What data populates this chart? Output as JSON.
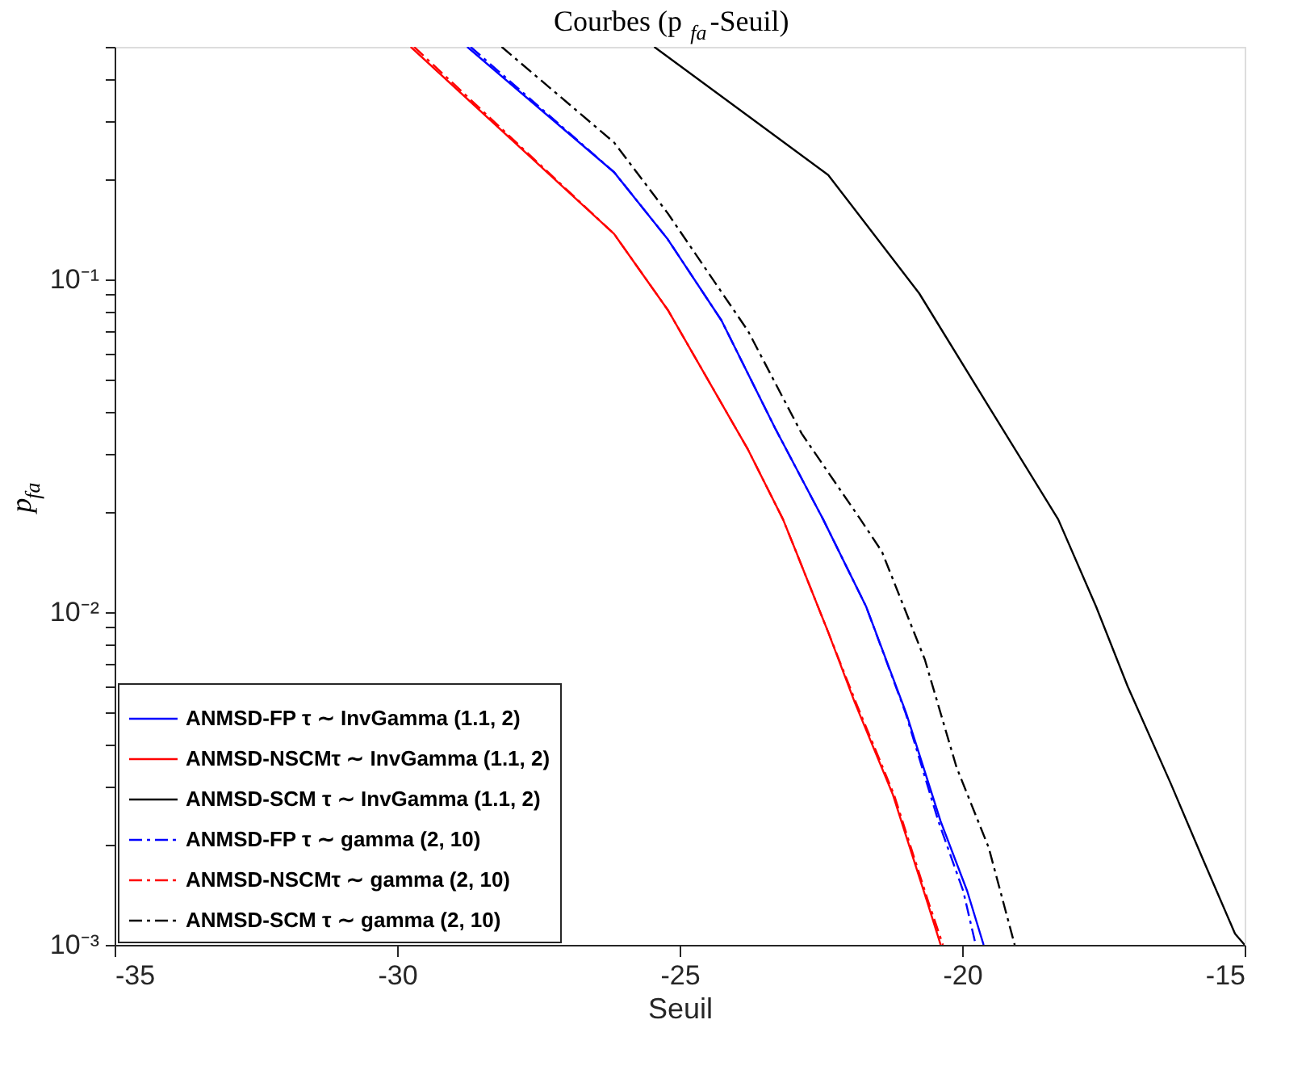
{
  "chart_data": {
    "type": "line",
    "title": "Courbes (p$_{fa}$-Seuil)",
    "xlabel": "Seuil",
    "ylabel": "p$_{fa}$",
    "xlim": [
      -35,
      -15
    ],
    "xticks": [
      -35,
      -30,
      -25,
      -20,
      -15
    ],
    "ylim": [
      0.001,
      0.5
    ],
    "yticks": [
      {
        "value": 0.001,
        "label": "10⁻³"
      },
      {
        "value": 0.002,
        "label": null
      },
      {
        "value": 0.003,
        "label": null
      },
      {
        "value": 0.004,
        "label": null
      },
      {
        "value": 0.005,
        "label": null
      },
      {
        "value": 0.006,
        "label": null
      },
      {
        "value": 0.007,
        "label": null
      },
      {
        "value": 0.008,
        "label": null
      },
      {
        "value": 0.009,
        "label": null
      },
      {
        "value": 0.01,
        "label": "10⁻²"
      },
      {
        "value": 0.02,
        "label": null
      },
      {
        "value": 0.03,
        "label": null
      },
      {
        "value": 0.04,
        "label": null
      },
      {
        "value": 0.05,
        "label": null
      },
      {
        "value": 0.06,
        "label": null
      },
      {
        "value": 0.07,
        "label": null
      },
      {
        "value": 0.08,
        "label": null
      },
      {
        "value": 0.09,
        "label": null
      },
      {
        "value": 0.1,
        "label": "10⁻¹"
      },
      {
        "value": 0.2,
        "label": null
      },
      {
        "value": 0.3,
        "label": null
      },
      {
        "value": 0.4,
        "label": null
      },
      {
        "value": 0.5,
        "label": null
      }
    ],
    "log": "y",
    "grid": false,
    "legend": "bottom left",
    "marker": "none",
    "series": [
      {
        "name": "ANMSD-FP τ ∼ InvGamma (1.1, 2)",
        "color": "#0000ff",
        "line_style": "solid",
        "x": [
          -28.76,
          -26.16,
          -25.21,
          -24.26,
          -23.31,
          -22.46,
          -21.7,
          -20.99,
          -20.38,
          -19.91,
          -19.62
        ],
        "values": [
          0.5,
          0.21,
          0.132,
          0.0753,
          0.0357,
          0.019,
          0.0104,
          0.00497,
          0.00235,
          0.00145,
          0.001
        ]
      },
      {
        "name": "ANMSD-NSCMτ ∼ InvGamma (1.1, 2)",
        "color": "#ff0000",
        "line_style": "solid",
        "x": [
          -29.76,
          -26.16,
          -25.21,
          -23.79,
          -23.17,
          -22.94,
          -22.37,
          -21.9,
          -21.23,
          -20.62,
          -20.38
        ],
        "values": [
          0.5,
          0.137,
          0.081,
          0.0308,
          0.019,
          0.0152,
          0.0087,
          0.00535,
          0.00284,
          0.00135,
          0.001
        ]
      },
      {
        "name": "ANMSD-SCM τ ∼ InvGamma (1.1, 2)",
        "color": "#000000",
        "line_style": "solid",
        "x": [
          -25.45,
          -23.79,
          -22.37,
          -20.76,
          -19.53,
          -18.3,
          -17.63,
          -17.07,
          -16.31,
          -15.74,
          -15.17,
          -15.0
        ],
        "values": [
          0.5,
          0.31,
          0.206,
          0.0908,
          0.0415,
          0.019,
          0.0104,
          0.00598,
          0.00306,
          0.00181,
          0.00108,
          0.001
        ]
      },
      {
        "name": "ANMSD-FP τ ∼ gamma (2, 10)",
        "color": "#0000ff",
        "line_style": "dashdot",
        "x": [
          -28.7,
          -26.16,
          -25.21,
          -24.26,
          -23.31,
          -22.46,
          -21.7,
          -21.0,
          -20.42,
          -19.98,
          -19.76
        ],
        "values": [
          0.5,
          0.21,
          0.132,
          0.0753,
          0.0357,
          0.019,
          0.0104,
          0.00497,
          0.00235,
          0.00145,
          0.001
        ]
      },
      {
        "name": "ANMSD-NSCMτ ∼ gamma (2, 10)",
        "color": "#ff0000",
        "line_style": "dashdot",
        "x": [
          -29.7,
          -26.16,
          -25.21,
          -23.79,
          -23.17,
          -22.94,
          -22.37,
          -21.88,
          -21.21,
          -20.6,
          -20.34
        ],
        "values": [
          0.5,
          0.137,
          0.081,
          0.0308,
          0.019,
          0.0152,
          0.0087,
          0.00535,
          0.00284,
          0.00135,
          0.001
        ]
      },
      {
        "name": "ANMSD-SCM τ ∼ gamma (2, 10)",
        "color": "#000000",
        "line_style": "dashdot",
        "x": [
          -28.15,
          -26.16,
          -25.21,
          -23.79,
          -22.84,
          -21.8,
          -21.42,
          -20.66,
          -20.1,
          -19.53,
          -19.07
        ],
        "values": [
          0.5,
          0.258,
          0.158,
          0.07,
          0.0344,
          0.019,
          0.0152,
          0.0072,
          0.00342,
          0.00196,
          0.001
        ]
      }
    ]
  }
}
